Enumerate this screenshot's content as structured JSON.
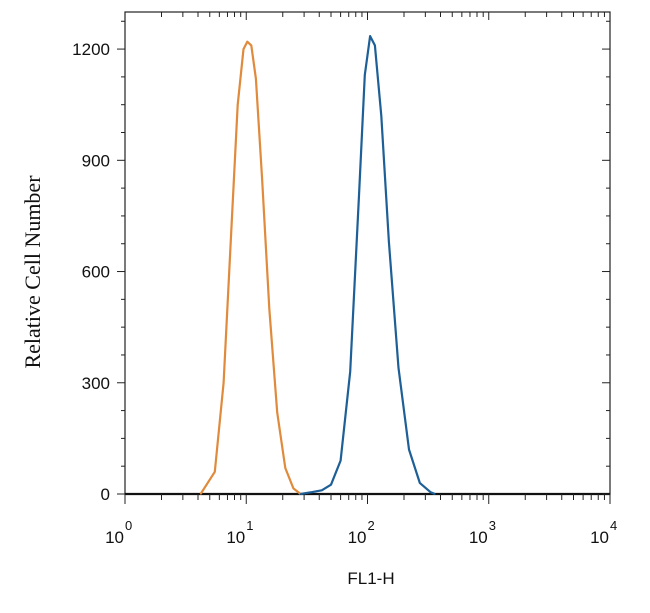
{
  "chart_data": {
    "type": "line",
    "title": "",
    "xlabel": "FL1-H",
    "ylabel": "Relative Cell Number",
    "x_scale": "log",
    "xlim": [
      1,
      10000
    ],
    "ylim": [
      0,
      1300
    ],
    "x_ticks": [
      {
        "base": "10",
        "exp": "0",
        "value": 1
      },
      {
        "base": "10",
        "exp": "1",
        "value": 10
      },
      {
        "base": "10",
        "exp": "2",
        "value": 100
      },
      {
        "base": "10",
        "exp": "3",
        "value": 1000
      },
      {
        "base": "10",
        "exp": "4",
        "value": 10000
      }
    ],
    "y_ticks": [
      {
        "label": "0",
        "value": 0
      },
      {
        "label": "300",
        "value": 300
      },
      {
        "label": "600",
        "value": 600
      },
      {
        "label": "900",
        "value": 900
      },
      {
        "label": "1200",
        "value": 1200
      }
    ],
    "grid": false,
    "series": [
      {
        "color": "#e08a3c",
        "x": [
          4.2,
          5.5,
          6.5,
          7.5,
          8.5,
          9.5,
          10.2,
          11.0,
          12.0,
          13.5,
          15.5,
          18.0,
          21.0,
          24.5,
          28.0
        ],
        "y": [
          0,
          60,
          300,
          700,
          1050,
          1200,
          1220,
          1210,
          1120,
          850,
          500,
          220,
          70,
          15,
          0
        ]
      },
      {
        "color": "#1d5f96",
        "x": [
          28,
          35,
          42,
          50,
          60,
          72,
          85,
          95,
          105,
          115,
          130,
          150,
          180,
          220,
          270,
          330,
          360
        ],
        "y": [
          0,
          5,
          10,
          25,
          90,
          330,
          800,
          1130,
          1235,
          1210,
          1020,
          680,
          340,
          120,
          30,
          5,
          0
        ]
      }
    ]
  }
}
